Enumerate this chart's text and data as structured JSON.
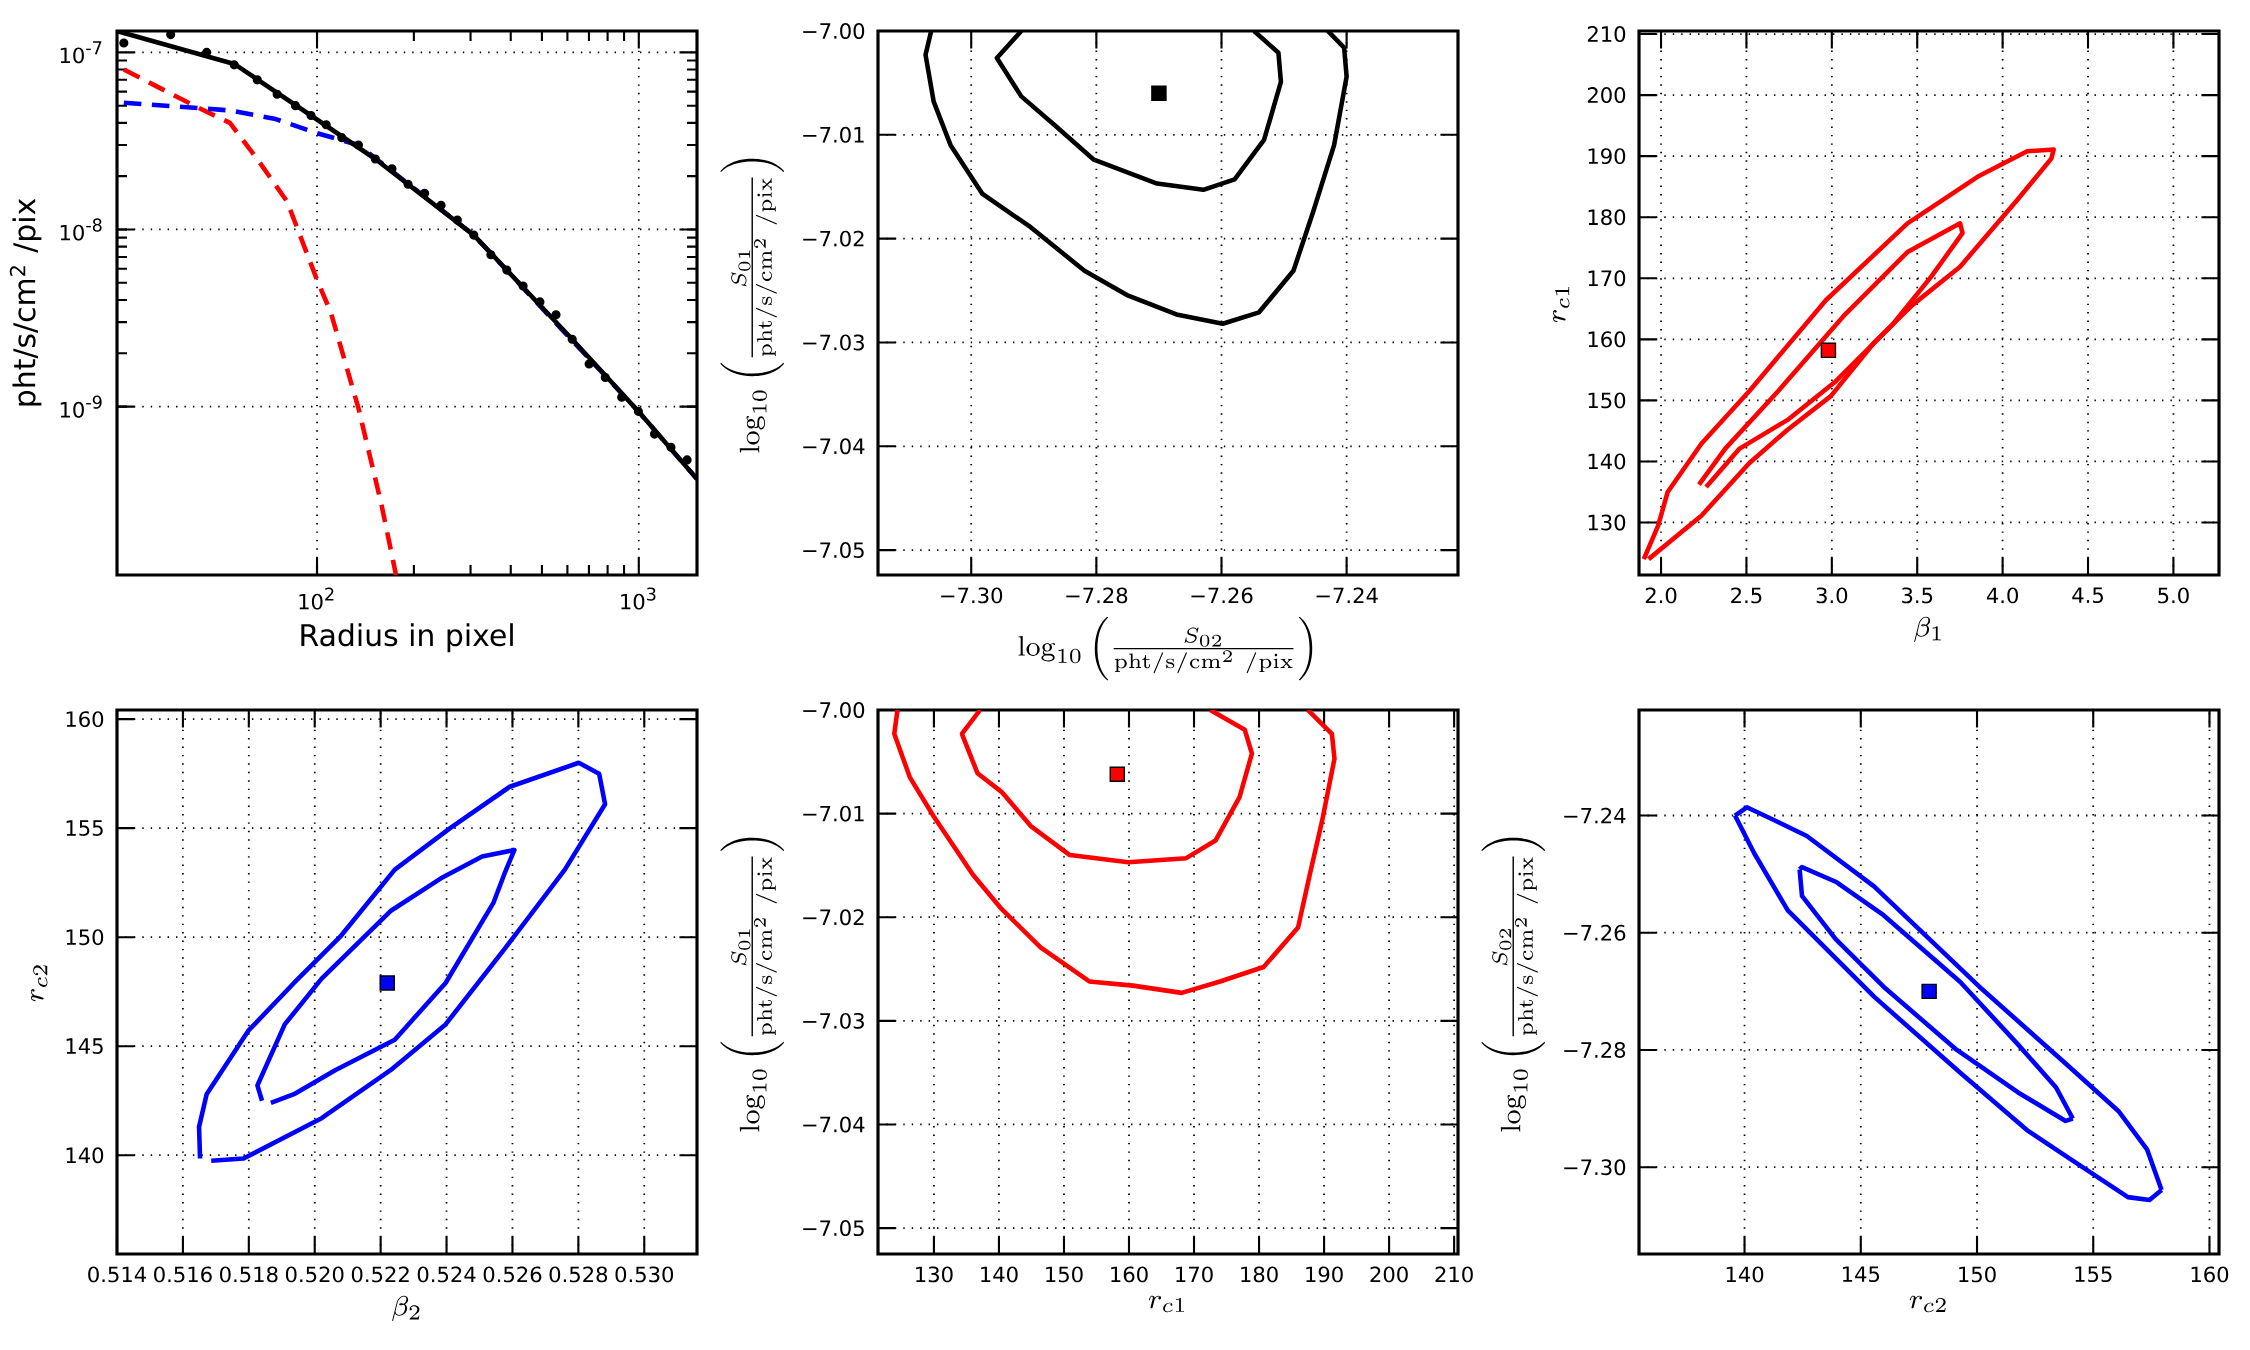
{
  "chart_data": [
    {
      "type": "line",
      "xlabel": "Radius in pixel",
      "ylabel": "pht/s/cm$^{2}$ /pix",
      "log": "xy",
      "grid": true,
      "xlim": [
        23.9,
        1517
      ],
      "ylim": [
        1.12e-10,
        1.32e-07
      ],
      "xticks": [
        {
          "value": 100,
          "label": "10$^{2}$"
        },
        {
          "value": 1000,
          "label": "10$^{3}$"
        }
      ],
      "yticks": [
        {
          "value": 1e-09,
          "label": "10$^{-9}$"
        },
        {
          "value": 1e-08,
          "label": "10$^{-8}$"
        },
        {
          "value": 1e-07,
          "label": "10$^{-7}$"
        }
      ],
      "series": [
        {
          "type": "line",
          "color": "#ff0000",
          "line_style": "dashed",
          "x": [
            25.1,
            42.5,
            53.6,
            65.2,
            80.7,
            100,
            110.4,
            134.5,
            158.6,
            176
          ],
          "values": [
            8e-08,
            4.9e-08,
            4e-08,
            2.5e-08,
            1.44e-08,
            5.2e-09,
            3.4e-09,
            9.8e-10,
            2.8e-10,
            1.12e-10
          ]
        },
        {
          "type": "line",
          "color": "#0000ff",
          "line_style": "dashed",
          "x": [
            25.1,
            53.6,
            74.4,
            100,
            134.5,
            307,
            997,
            1517
          ],
          "values": [
            5.2e-08,
            4.7e-08,
            4.2e-08,
            3.5e-08,
            3e-08,
            9.3e-09,
            9.4e-10,
            3.9e-10
          ]
        },
        {
          "type": "line",
          "color": "#000000",
          "line_style": "solid",
          "x": [
            23.9,
            55.3,
            95.8,
            151.8,
            307,
            621,
            997,
            1517
          ],
          "values": [
            1.32e-07,
            8.6e-08,
            4.4e-08,
            2.5e-08,
            9.3e-09,
            2.4e-09,
            9.4e-10,
            3.9e-10
          ]
        },
        {
          "type": "scatter",
          "color": "#000000",
          "marker": "circle",
          "x": [
            25.1,
            35.1,
            45.4,
            55.3,
            65.2,
            75.2,
            85.7,
            95.8,
            106.8,
            119.4,
            134.5,
            151.8,
            171,
            191.9,
            216,
            243,
            273,
            307,
            347,
            389,
            437,
            493,
            553,
            621,
            701,
            787,
            885,
            997,
            1119,
            1259,
            1413
          ],
          "values": [
            1.13e-07,
            1.26e-07,
            1e-07,
            8.5e-08,
            7e-08,
            5.8e-08,
            5e-08,
            4.4e-08,
            3.9e-08,
            3.3e-08,
            3e-08,
            2.5e-08,
            2.2e-08,
            1.8e-08,
            1.6e-08,
            1.37e-08,
            1.13e-08,
            9.3e-09,
            7.2e-09,
            5.9e-09,
            4.8e-09,
            3.9e-09,
            3.3e-09,
            2.4e-09,
            1.74e-09,
            1.46e-09,
            1.13e-09,
            9.4e-10,
            7e-10,
            5.9e-10,
            5e-10
          ]
        }
      ]
    },
    {
      "type": "line",
      "xlabel": "\\log_{10}\\left(\\frac{S_{02}}{\\mathrm{pht/s/cm^{2}\\ /pix}}\\right)",
      "ylabel": "\\log_{10}\\left(\\frac{S_{01}}{\\mathrm{pht/s/cm^{2}\\ /pix}}\\right)",
      "grid": true,
      "xlim": [
        -7.3149,
        -7.2222
      ],
      "ylim": [
        -7.0524,
        -7.0
      ],
      "xticks": [
        {
          "value": -7.3,
          "label": "−7.30"
        },
        {
          "value": -7.28,
          "label": "−7.28"
        },
        {
          "value": -7.26,
          "label": "−7.26"
        },
        {
          "value": -7.24,
          "label": "−7.24"
        }
      ],
      "yticks": [
        {
          "value": -7.05,
          "label": "−7.05"
        },
        {
          "value": -7.04,
          "label": "−7.04"
        },
        {
          "value": -7.03,
          "label": "−7.03"
        },
        {
          "value": -7.02,
          "label": "−7.02"
        },
        {
          "value": -7.01,
          "label": "−7.01"
        },
        {
          "value": -7.0,
          "label": "−7.00"
        }
      ],
      "series": [
        {
          "type": "line",
          "color": "#000000",
          "line_style": "solid",
          "x": [
            -7.3064,
            -7.3073,
            -7.306,
            -7.3033,
            -7.2982,
            -7.2905,
            -7.2819,
            -7.2749,
            -7.2672,
            -7.2598,
            -7.254,
            -7.2485,
            -7.2454,
            -7.242,
            -7.24,
            -7.2404,
            -7.243
          ],
          "values": [
            -7.0,
            -7.0023,
            -7.0068,
            -7.011,
            -7.0157,
            -7.0189,
            -7.0231,
            -7.0255,
            -7.0273,
            -7.0282,
            -7.0271,
            -7.0231,
            -7.0175,
            -7.011,
            -7.0044,
            -7.0016,
            -7.0
          ]
        },
        {
          "type": "line",
          "color": "#000000",
          "line_style": "solid",
          "x": [
            -7.292,
            -7.2959,
            -7.292,
            -7.2866,
            -7.2804,
            -7.2703,
            -7.2629,
            -7.2579,
            -7.2532,
            -7.2505,
            -7.2509,
            -7.2548
          ],
          "values": [
            -7.0,
            -7.0026,
            -7.0063,
            -7.0091,
            -7.0124,
            -7.0147,
            -7.0153,
            -7.0143,
            -7.0105,
            -7.0049,
            -7.0021,
            -7.0
          ]
        },
        {
          "type": "scatter",
          "color": "#000000",
          "marker": "square",
          "x": [
            -7.27
          ],
          "values": [
            -7.006
          ]
        }
      ]
    },
    {
      "type": "line",
      "xlabel": "\\beta_1",
      "ylabel": "r_{c1}",
      "grid": true,
      "xlim": [
        1.871,
        5.267
      ],
      "ylim": [
        121.4,
        210.5
      ],
      "xticks": [
        {
          "value": 2,
          "label": "2.0"
        },
        {
          "value": 2.5,
          "label": "2.5"
        },
        {
          "value": 3,
          "label": "3.0"
        },
        {
          "value": 3.5,
          "label": "3.5"
        },
        {
          "value": 4,
          "label": "4.0"
        },
        {
          "value": 4.5,
          "label": "4.5"
        },
        {
          "value": 5,
          "label": "5.0"
        }
      ],
      "yticks": [
        130,
        140,
        150,
        160,
        170,
        180,
        190,
        200,
        210
      ],
      "series": [
        {
          "type": "line",
          "color": "#ff0000",
          "line_style": "solid",
          "x": [
            1.899,
            1.983,
            2.039,
            2.236,
            2.516,
            2.965,
            3.443,
            3.864,
            4.144,
            4.299,
            4.285,
            4.088,
            3.751,
            3.471,
            3.246,
            2.994,
            2.741,
            2.516,
            2.236,
            1.927
          ],
          "values": [
            124.0,
            129.5,
            135.0,
            142.9,
            151.5,
            166.4,
            179.0,
            186.8,
            190.8,
            191.1,
            189.6,
            182.9,
            171.9,
            165.6,
            159.4,
            150.7,
            145.2,
            139.7,
            131.1,
            124.0
          ]
        },
        {
          "type": "line",
          "color": "#ff0000",
          "line_style": "solid",
          "x": [
            2.222,
            2.376,
            2.685,
            3.078,
            3.443,
            3.751,
            3.765,
            3.583,
            3.358,
            3.022,
            2.741,
            2.46,
            2.264
          ],
          "values": [
            136.2,
            142.1,
            151.5,
            164.1,
            174.3,
            179.0,
            177.4,
            170.3,
            162.5,
            153.1,
            146.8,
            142.1,
            135.8
          ]
        },
        {
          "type": "scatter",
          "color": "#ff0000",
          "marker": "square",
          "x": [
            2.98
          ],
          "values": [
            158.2
          ]
        }
      ]
    },
    {
      "type": "line",
      "xlabel": "\\beta_2",
      "ylabel": "r_{c2}",
      "grid": true,
      "xlim": [
        0.514,
        0.5316
      ],
      "ylim": [
        135.47,
        160.42
      ],
      "xticks": [
        {
          "value": 0.514,
          "label": "0.514"
        },
        {
          "value": 0.516,
          "label": "0.516"
        },
        {
          "value": 0.518,
          "label": "0.518"
        },
        {
          "value": 0.52,
          "label": "0.520"
        },
        {
          "value": 0.522,
          "label": "0.522"
        },
        {
          "value": 0.524,
          "label": "0.524"
        },
        {
          "value": 0.526,
          "label": "0.526"
        },
        {
          "value": 0.528,
          "label": "0.528"
        },
        {
          "value": 0.53,
          "label": "0.530"
        }
      ],
      "yticks": [
        140,
        145,
        150,
        155,
        160
      ],
      "series": [
        {
          "type": "line",
          "color": "#0000ff",
          "line_style": "solid",
          "x": [
            0.51652,
            0.51649,
            0.51672,
            0.51798,
            0.51937,
            0.52076,
            0.52243,
            0.52411,
            0.52592,
            0.52801,
            0.52863,
            0.52881,
            0.52759,
            0.52578,
            0.52397,
            0.5223,
            0.52021,
            0.51784,
            0.51686
          ],
          "values": [
            139.85,
            141.3,
            142.8,
            145.7,
            147.9,
            150.0,
            153.1,
            155.0,
            156.9,
            158.0,
            157.5,
            156.1,
            153.1,
            149.5,
            146.0,
            143.9,
            141.7,
            139.85,
            139.75
          ]
        },
        {
          "type": "line",
          "color": "#0000ff",
          "line_style": "solid",
          "x": [
            0.5184,
            0.51826,
            0.51909,
            0.52021,
            0.5223,
            0.52383,
            0.52508,
            0.52606,
            0.52578,
            0.52543,
            0.52397,
            0.52243,
            0.52062,
            0.51937,
            0.51867
          ],
          "values": [
            142.5,
            143.2,
            146.0,
            148.1,
            151.2,
            152.7,
            153.7,
            154.0,
            153.0,
            151.6,
            147.9,
            145.3,
            143.9,
            142.8,
            142.4
          ]
        },
        {
          "type": "scatter",
          "color": "#0000ff",
          "marker": "square",
          "x": [
            0.5222
          ],
          "values": [
            147.9
          ]
        }
      ]
    },
    {
      "type": "line",
      "xlabel": "r_{c1}",
      "ylabel": "\\log_{10}\\left(\\frac{S_{01}}{\\mathrm{pht/s/cm^{2}\\ /pix}}\\right)",
      "grid": true,
      "xlim": [
        121.4,
        210.6
      ],
      "ylim": [
        -7.0525,
        -7.0
      ],
      "xticks": [
        130,
        140,
        150,
        160,
        170,
        180,
        190,
        200,
        210
      ],
      "yticks": [
        {
          "value": -7.05,
          "label": "−7.05"
        },
        {
          "value": -7.04,
          "label": "−7.04"
        },
        {
          "value": -7.03,
          "label": "−7.03"
        },
        {
          "value": -7.02,
          "label": "−7.02"
        },
        {
          "value": -7.01,
          "label": "−7.01"
        },
        {
          "value": -7.0,
          "label": "−7.00"
        }
      ],
      "series": [
        {
          "type": "line",
          "color": "#ff0000",
          "line_style": "solid",
          "x": [
            124.4,
            123.9,
            126.3,
            130.0,
            136.0,
            140.4,
            146.4,
            153.9,
            160.6,
            168.1,
            174.0,
            180.7,
            186.0,
            187.8,
            189.7,
            191.6,
            191.2,
            187.5
          ],
          "values": [
            -7.0,
            -7.0023,
            -7.0065,
            -7.0103,
            -7.0159,
            -7.0192,
            -7.0229,
            -7.0262,
            -7.0266,
            -7.0273,
            -7.0262,
            -7.0248,
            -7.021,
            -7.0159,
            -7.0107,
            -7.0047,
            -7.0023,
            -7.0
          ]
        },
        {
          "type": "line",
          "color": "#ff0000",
          "line_style": "solid",
          "x": [
            137.1,
            134.3,
            136.7,
            140.4,
            144.9,
            150.9,
            159.9,
            168.8,
            173.3,
            177.0,
            178.9,
            177.8,
            172.5
          ],
          "values": [
            -7.0,
            -7.0023,
            -7.0061,
            -7.0079,
            -7.0112,
            -7.014,
            -7.0147,
            -7.0143,
            -7.0126,
            -7.0084,
            -7.0042,
            -7.0019,
            -7.0
          ]
        },
        {
          "type": "scatter",
          "color": "#ff0000",
          "marker": "square",
          "x": [
            158.2
          ],
          "values": [
            -7.0062
          ]
        }
      ]
    },
    {
      "type": "line",
      "xlabel": "r_{c2}",
      "ylabel": "\\log_{10}\\left(\\frac{S_{02}}{\\mathrm{pht/s/cm^{2}\\ /pix}}\\right)",
      "grid": true,
      "xlim": [
        135.46,
        160.41
      ],
      "ylim": [
        -7.3148,
        -7.222
      ],
      "xticks": [
        140,
        145,
        150,
        155,
        160
      ],
      "yticks": [
        {
          "value": -7.3,
          "label": "−7.30"
        },
        {
          "value": -7.28,
          "label": "−7.28"
        },
        {
          "value": -7.26,
          "label": "−7.26"
        },
        {
          "value": -7.24,
          "label": "−7.24"
        }
      ],
      "series": [
        {
          "type": "line",
          "color": "#0000ff",
          "line_style": "solid",
          "x": [
            139.59,
            140.1,
            141.44,
            142.68,
            145.57,
            150.1,
            153.81,
            156.08,
            157.32,
            157.94
          ],
          "values": [
            -7.24,
            -7.2386,
            -7.2411,
            -7.2435,
            -7.2521,
            -7.2692,
            -7.2823,
            -7.2904,
            -7.297,
            -7.3039
          ]
        },
        {
          "type": "line",
          "color": "#0000ff",
          "line_style": "solid",
          "x": [
            157.94,
            157.42,
            156.49,
            154.02,
            152.16,
            149.28,
            145.57,
            141.86,
            140.41,
            139.59
          ],
          "values": [
            -7.3039,
            -7.3056,
            -7.3051,
            -7.2986,
            -7.2937,
            -7.2839,
            -7.2709,
            -7.2562,
            -7.2464,
            -7.24
          ]
        },
        {
          "type": "line",
          "color": "#0000ff",
          "line_style": "solid",
          "x": [
            142.37,
            142.47,
            143.92,
            145.98,
            149.28,
            151.75,
            153.4,
            154.12
          ],
          "values": [
            -7.2492,
            -7.2488,
            -7.2513,
            -7.257,
            -7.2684,
            -7.279,
            -7.2864,
            -7.2917
          ]
        },
        {
          "type": "line",
          "color": "#0000ff",
          "line_style": "solid",
          "x": [
            154.12,
            153.81,
            151.75,
            149.07,
            145.98,
            143.92,
            142.47,
            142.37
          ],
          "values": [
            -7.2917,
            -7.2921,
            -7.2872,
            -7.2798,
            -7.2692,
            -7.2611,
            -7.2537,
            -7.2492
          ]
        },
        {
          "type": "scatter",
          "color": "#0000ff",
          "marker": "square",
          "x": [
            147.94
          ],
          "values": [
            -7.27
          ]
        }
      ]
    }
  ]
}
